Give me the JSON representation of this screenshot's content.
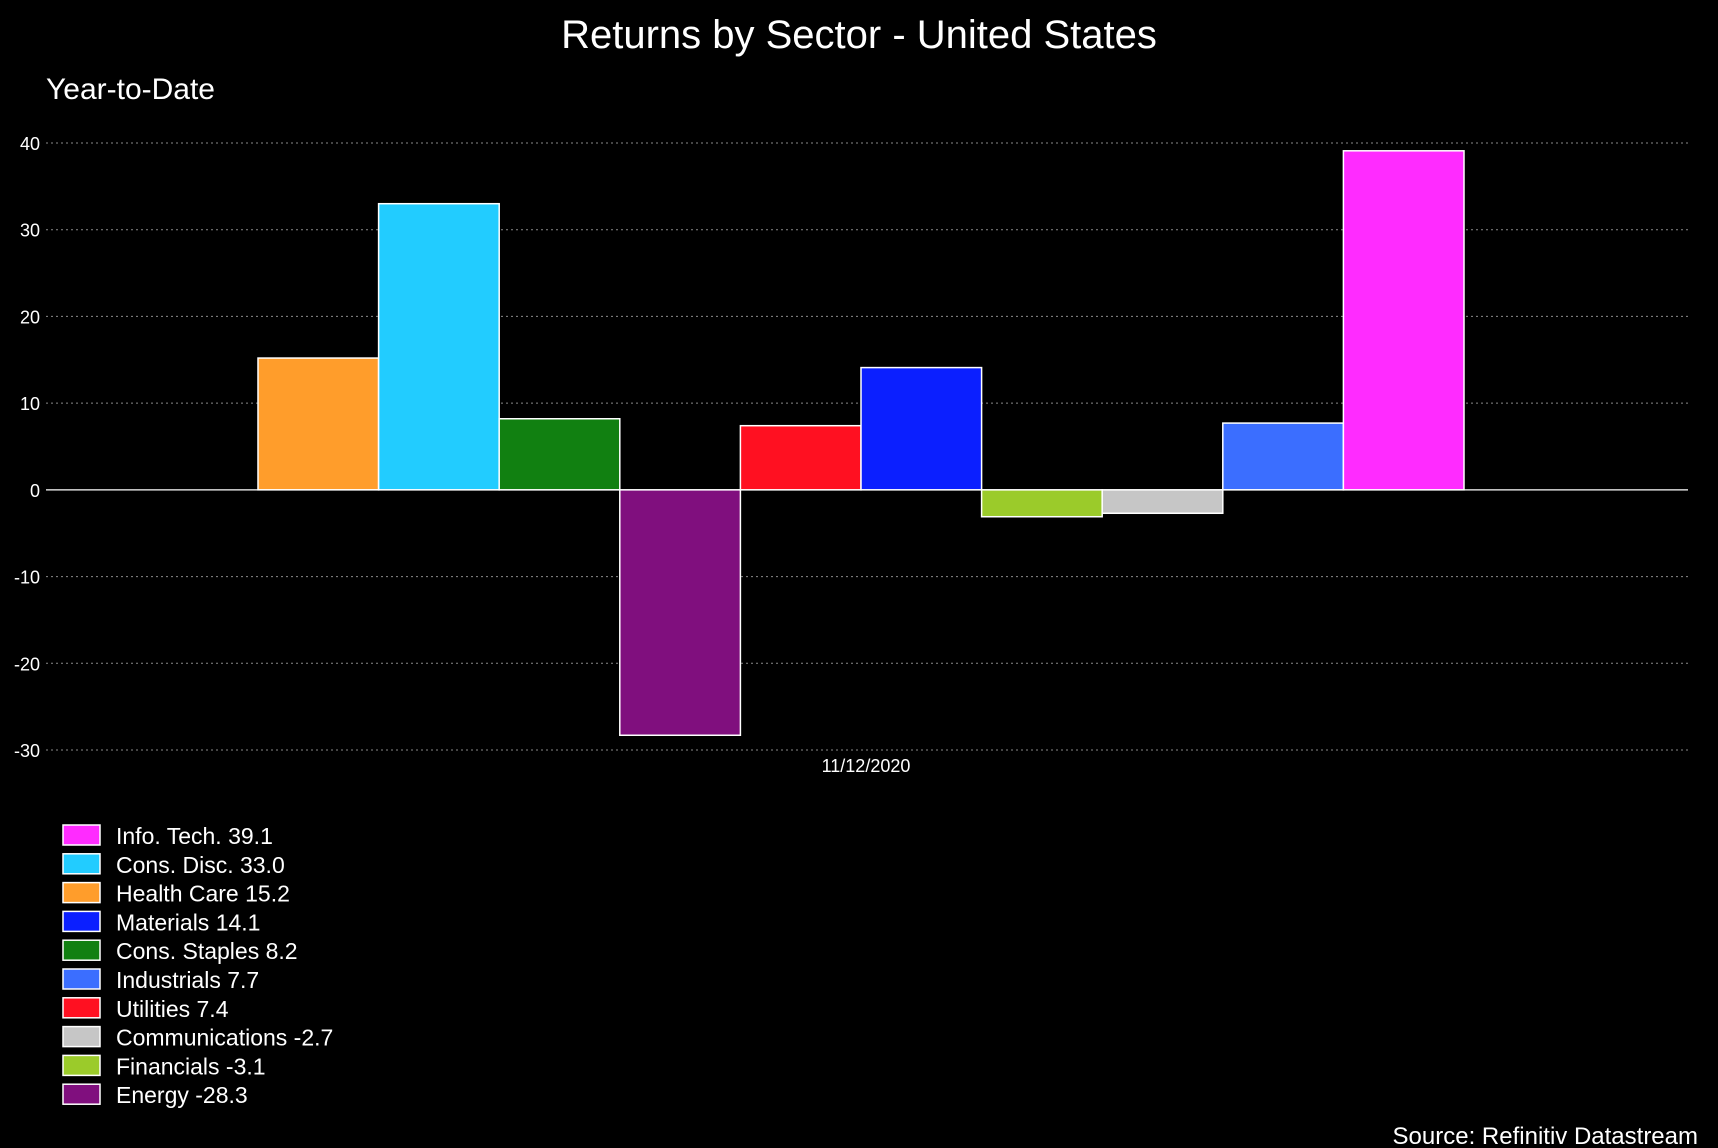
{
  "chart_data": {
    "type": "bar",
    "title": "Returns by Sector - United States",
    "subtitle": "Year-to-Date",
    "x_category": "11/12/2020",
    "ylim": [
      -30,
      40
    ],
    "yticks": [
      40,
      30,
      20,
      10,
      0,
      -10,
      -20,
      -30
    ],
    "grid": true,
    "legend_position": "bottom-left",
    "source": "Source: Refinitiv Datastream",
    "series": [
      {
        "name": "Health Care",
        "value": 15.2,
        "color": "#FF9D2B"
      },
      {
        "name": "Cons. Disc.",
        "value": 33.0,
        "color": "#22CCFF"
      },
      {
        "name": "Cons. Staples",
        "value": 8.2,
        "color": "#118011"
      },
      {
        "name": "Energy",
        "value": -28.3,
        "color": "#800F7E"
      },
      {
        "name": "Utilities",
        "value": 7.4,
        "color": "#FF1021"
      },
      {
        "name": "Materials",
        "value": 14.1,
        "color": "#0B1FFF"
      },
      {
        "name": "Financials",
        "value": -3.1,
        "color": "#9BCB2A"
      },
      {
        "name": "Communications",
        "value": -2.7,
        "color": "#C6C6C6"
      },
      {
        "name": "Industrials",
        "value": 7.7,
        "color": "#3B6EFF"
      },
      {
        "name": "Info. Tech.",
        "value": 39.1,
        "color": "#FF2BFF"
      }
    ],
    "legend": [
      {
        "label": "Info. Tech. 39.1",
        "color": "#FF2BFF"
      },
      {
        "label": "Cons. Disc. 33.0",
        "color": "#22CCFF"
      },
      {
        "label": "Health Care 15.2",
        "color": "#FF9D2B"
      },
      {
        "label": "Materials 14.1",
        "color": "#0B1FFF"
      },
      {
        "label": "Cons. Staples 8.2",
        "color": "#118011"
      },
      {
        "label": "Industrials 7.7",
        "color": "#3B6EFF"
      },
      {
        "label": "Utilities 7.4",
        "color": "#FF1021"
      },
      {
        "label": "Communications -2.7",
        "color": "#C6C6C6"
      },
      {
        "label": "Financials -3.1",
        "color": "#9BCB2A"
      },
      {
        "label": "Energy -28.3",
        "color": "#800F7E"
      }
    ]
  }
}
